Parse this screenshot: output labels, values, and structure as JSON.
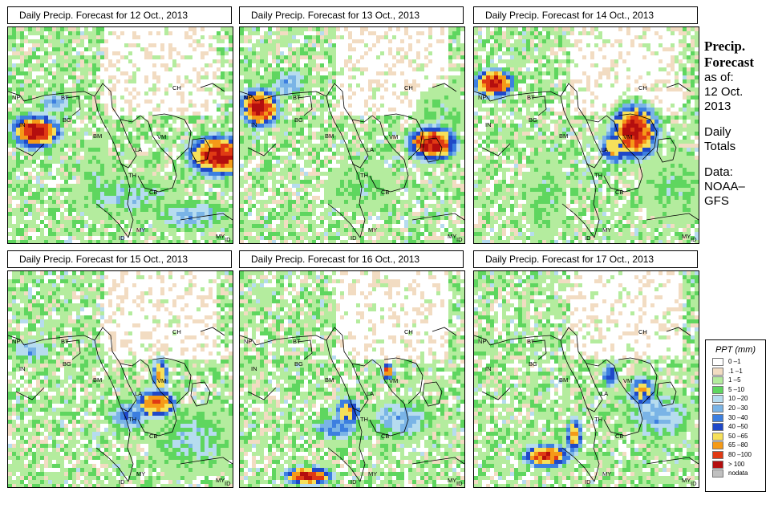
{
  "panels": [
    {
      "title": "Daily Precip. Forecast for  12 Oct., 2013",
      "day": 0
    },
    {
      "title": "Daily Precip. Forecast for  13 Oct., 2013",
      "day": 1
    },
    {
      "title": "Daily Precip. Forecast for  14 Oct., 2013",
      "day": 2
    },
    {
      "title": "Daily Precip. Forecast for  15 Oct., 2013",
      "day": 3
    },
    {
      "title": "Daily Precip. Forecast for  16 Oct., 2013",
      "day": 4
    },
    {
      "title": "Daily Precip. Forecast for  17 Oct., 2013",
      "day": 5
    }
  ],
  "country_labels": [
    "CH",
    "NP",
    "BT",
    "BG",
    "IN",
    "BM",
    "VM",
    "LA",
    "TH",
    "CB",
    "MY",
    "ID",
    "MY",
    "ID"
  ],
  "sidebar": {
    "heading": [
      "Precip.",
      "Forecast"
    ],
    "asof": "as of:",
    "date_line1": "12 Oct.",
    "date_line2": "2013",
    "daily_line1": "Daily",
    "daily_line2": "Totals",
    "data_line1": "Data:",
    "data_line2": "NOAA–",
    "data_line3": "GFS"
  },
  "legend": {
    "title": "PPT (mm)",
    "items": [
      {
        "label": "0 –1",
        "color": "#ffffff"
      },
      {
        "label": ".1 –1",
        "color": "#f2dcc2"
      },
      {
        "label": "1 –5",
        "color": "#b4ec9e"
      },
      {
        "label": "5 –10",
        "color": "#5fd65f"
      },
      {
        "label": "10 –20",
        "color": "#b6dcef"
      },
      {
        "label": "20 –30",
        "color": "#7ab4e6"
      },
      {
        "label": "30 –40",
        "color": "#3c7fe0"
      },
      {
        "label": "40 –50",
        "color": "#1f48c8"
      },
      {
        "label": "50 –65",
        "color": "#f6e05a"
      },
      {
        "label": "65 –80",
        "color": "#f59a18"
      },
      {
        "label": "80 –100",
        "color": "#e03a14"
      },
      {
        "label": "> 100",
        "color": "#b40e0e"
      },
      {
        "label": "nodata",
        "color": "#c0c0c0"
      }
    ]
  }
}
